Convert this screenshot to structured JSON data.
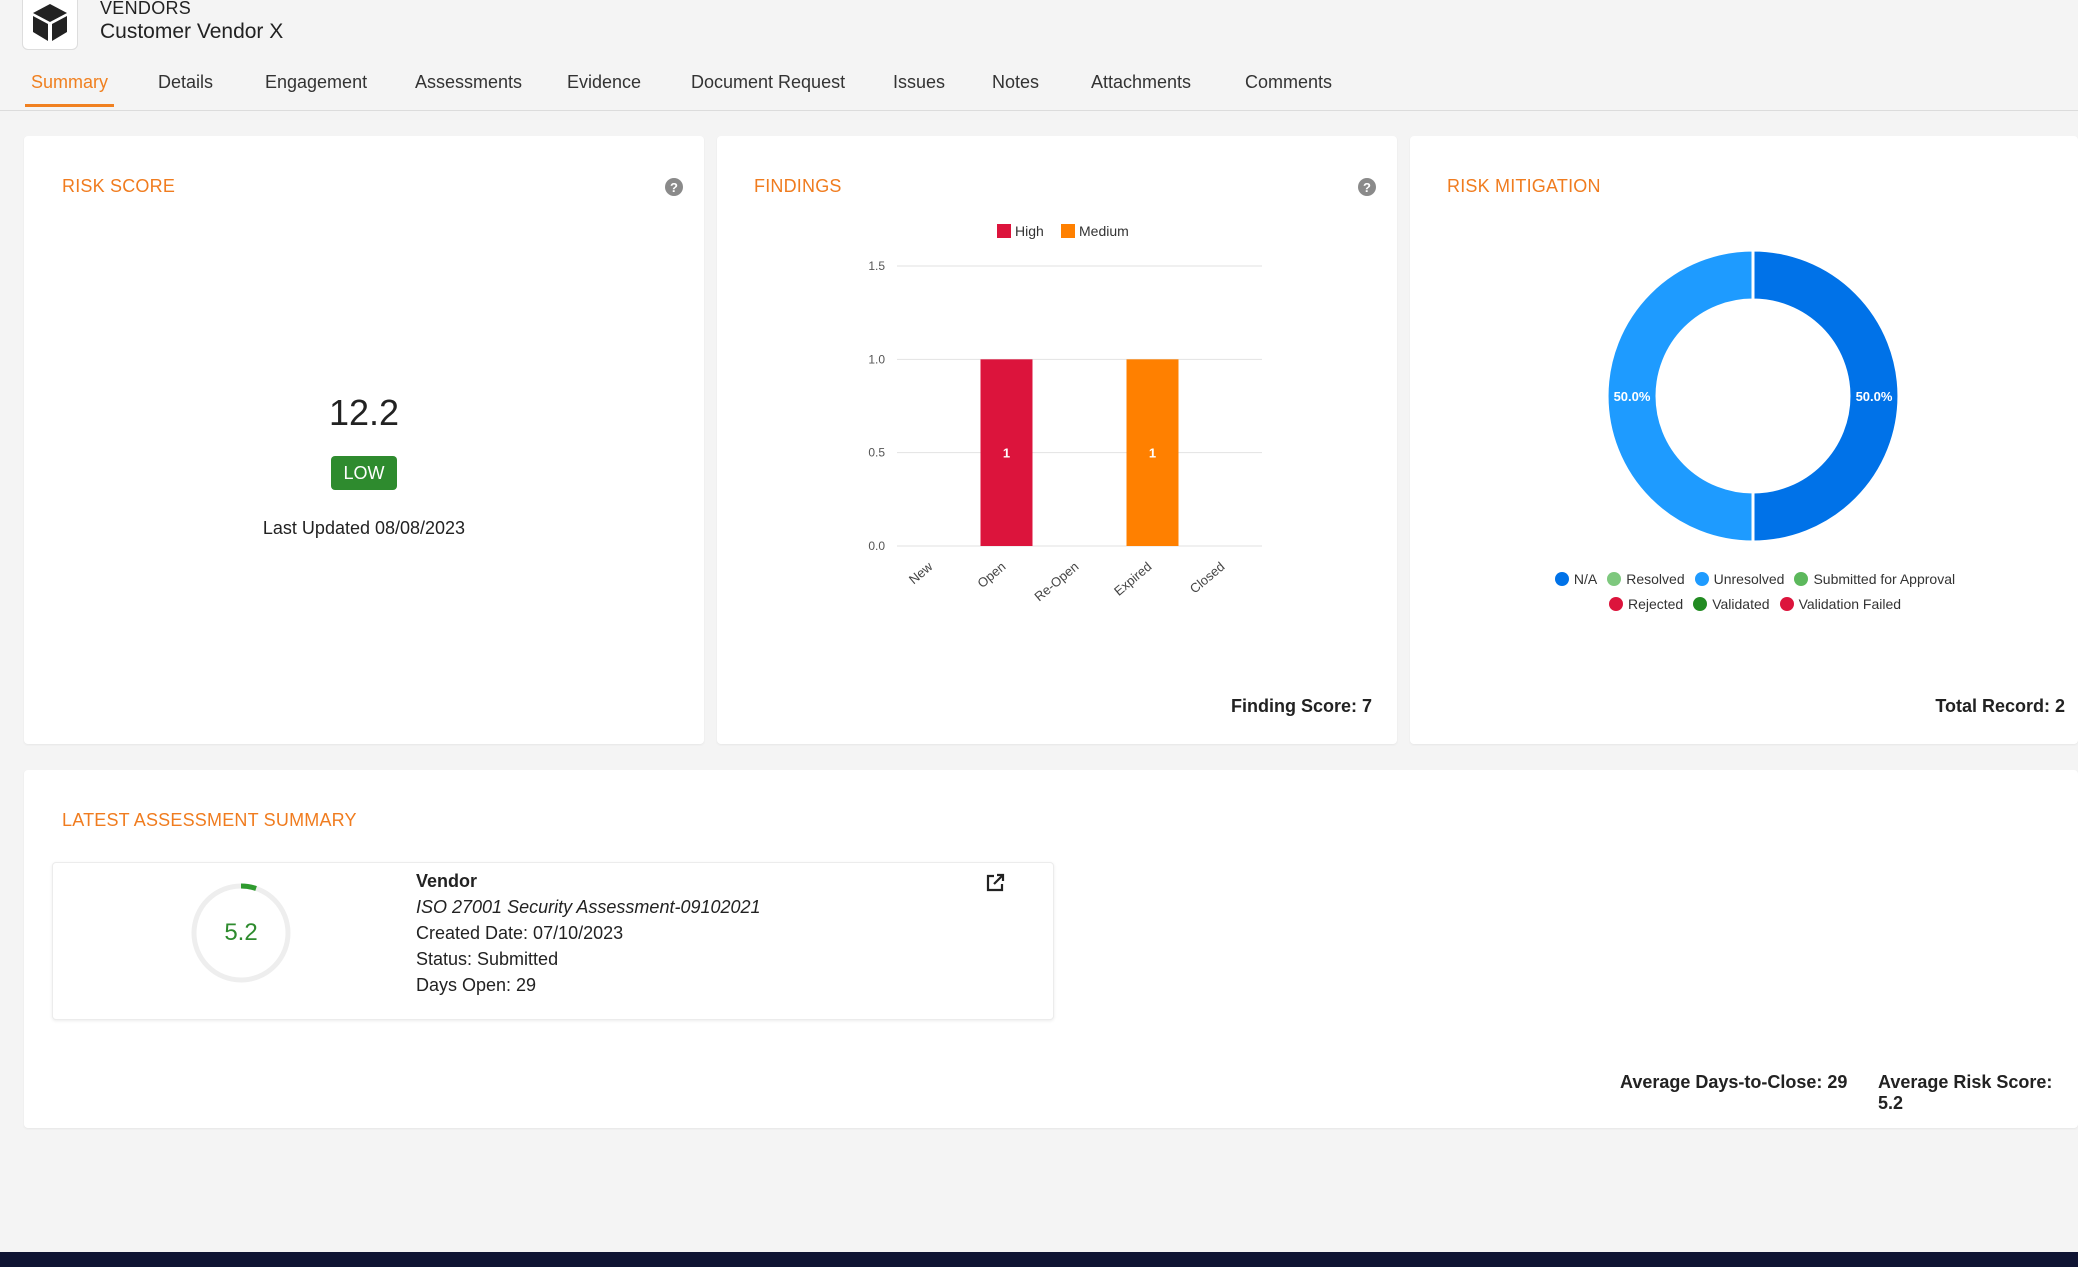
{
  "header": {
    "breadcrumb": "VENDORS",
    "title": "Customer Vendor X"
  },
  "tabs": [
    {
      "label": "Summary",
      "active": true
    },
    {
      "label": "Details"
    },
    {
      "label": "Engagement"
    },
    {
      "label": "Assessments"
    },
    {
      "label": "Evidence"
    },
    {
      "label": "Document Request"
    },
    {
      "label": "Issues"
    },
    {
      "label": "Notes"
    },
    {
      "label": "Attachments"
    },
    {
      "label": "Comments"
    }
  ],
  "risk_score": {
    "title": "RISK SCORE",
    "value": "12.2",
    "level": "LOW",
    "level_color": "#2e8b2e",
    "last_updated": "Last Updated 08/08/2023"
  },
  "findings": {
    "title": "FINDINGS",
    "footer": "Finding Score: 7"
  },
  "risk_mitigation": {
    "title": "RISK MITIGATION",
    "footer": "Total Record: 2"
  },
  "latest_assessment": {
    "title": "LATEST ASSESSMENT SUMMARY",
    "score": "5.2",
    "score_fraction": 0.052,
    "vendor": "Vendor",
    "name": "ISO 27001 Security Assessment-09102021",
    "created": "Created Date: 07/10/2023",
    "status": "Status: Submitted",
    "days_open": "Days Open: 29",
    "avg_days": "Average Days-to-Close: 29",
    "avg_risk": "Average Risk Score: 5.2"
  },
  "colors": {
    "accent": "#f07c1f",
    "high": "#dc143c",
    "medium": "#ff8000",
    "na": "#0072e8",
    "unresolved": "#1e9bff",
    "resolved": "#7ec87e",
    "submitted": "#5cb85c",
    "rejected": "#dc143c",
    "validated": "#228b22",
    "validation_failed": "#dc143c"
  },
  "chart_data": [
    {
      "type": "bar",
      "categories": [
        "New",
        "Open",
        "Re-Open",
        "Expired",
        "Closed"
      ],
      "series": [
        {
          "name": "High",
          "values": [
            0,
            1,
            0,
            0,
            0
          ],
          "color": "#dc143c"
        },
        {
          "name": "Medium",
          "values": [
            0,
            0,
            0,
            1,
            0
          ],
          "color": "#ff8000"
        }
      ],
      "data_labels": [
        "1",
        "1"
      ],
      "yticks": [
        "0.0",
        "0.5",
        "1.0",
        "1.5"
      ],
      "ylim": [
        0,
        1.5
      ],
      "legend": "top",
      "grid": true
    },
    {
      "type": "pie",
      "donut": true,
      "slices": [
        {
          "name": "N/A",
          "value": 50.0,
          "label": "50.0%",
          "color": "#0072e8"
        },
        {
          "name": "Unresolved",
          "value": 50.0,
          "label": "50.0%",
          "color": "#1e9bff"
        }
      ],
      "legend": [
        {
          "name": "N/A",
          "color": "#0072e8"
        },
        {
          "name": "Resolved",
          "color": "#7ec87e"
        },
        {
          "name": "Unresolved",
          "color": "#1e9bff"
        },
        {
          "name": "Submitted for Approval",
          "color": "#5cb85c"
        },
        {
          "name": "Rejected",
          "color": "#dc143c"
        },
        {
          "name": "Validated",
          "color": "#228b22"
        },
        {
          "name": "Validation Failed",
          "color": "#dc143c"
        }
      ],
      "legend_position": "bottom"
    }
  ]
}
